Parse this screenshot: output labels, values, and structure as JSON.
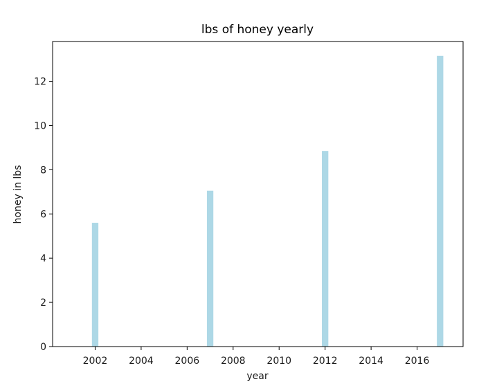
{
  "chart_data": {
    "type": "bar",
    "title": "lbs of honey yearly",
    "xlabel": "year",
    "ylabel": "honey in lbs",
    "x": [
      2002,
      2007,
      2012,
      2017
    ],
    "values": [
      5.6,
      7.05,
      8.85,
      13.15
    ],
    "xlim": [
      2000.15,
      2018.0
    ],
    "ylim": [
      0,
      13.8
    ],
    "xticks": [
      2002,
      2004,
      2006,
      2008,
      2010,
      2012,
      2014,
      2016
    ],
    "yticks": [
      0,
      2,
      4,
      6,
      8,
      10,
      12
    ],
    "bar_width_years": 0.28,
    "bar_color": "#add8e6",
    "grid": false
  }
}
